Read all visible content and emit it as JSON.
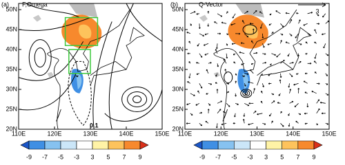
{
  "panels": [
    {
      "label": "(a)",
      "title": "F,Omega",
      "annotation": 0.1,
      "xticks": [
        {
          "value": 110,
          "label": "110E"
        },
        {
          "value": 120,
          "label": "120E"
        },
        {
          "value": 130,
          "label": "130E"
        },
        {
          "value": 140,
          "label": "140E"
        },
        {
          "value": 150,
          "label": "150E"
        }
      ],
      "yticks": [
        {
          "value": 20,
          "label": "20N"
        },
        {
          "value": 25,
          "label": "25N"
        },
        {
          "value": 30,
          "label": "30N"
        },
        {
          "value": 35,
          "label": "35N"
        },
        {
          "value": 40,
          "label": "40N"
        },
        {
          "value": 45,
          "label": "45N"
        },
        {
          "value": 50,
          "label": "50N"
        }
      ]
    },
    {
      "label": "(b)",
      "title": "Q-Vector",
      "reference_vector": 3,
      "xticks": [
        {
          "value": 110,
          "label": "110E"
        },
        {
          "value": 120,
          "label": "120E"
        },
        {
          "value": 130,
          "label": "130E"
        },
        {
          "value": 140,
          "label": "140E"
        },
        {
          "value": 150,
          "label": "150E"
        }
      ],
      "yticks": [
        {
          "value": 20,
          "label": "20N"
        },
        {
          "value": 25,
          "label": "25N"
        },
        {
          "value": 30,
          "label": "30N"
        },
        {
          "value": 35,
          "label": "35N"
        },
        {
          "value": 40,
          "label": "40N"
        },
        {
          "value": 45,
          "label": "45N"
        },
        {
          "value": 50,
          "label": "50N"
        }
      ]
    }
  ],
  "colorbars": [
    {
      "colors": [
        "#1a56c8",
        "#3f8fe4",
        "#86c2f0",
        "#cbe6f8",
        "#ffffff",
        "#fff3a6",
        "#fdc35c",
        "#f7892d",
        "#d9301a"
      ],
      "ticks": [
        -9,
        -7,
        -5,
        -3,
        3,
        5,
        7,
        9
      ]
    },
    {
      "colors": [
        "#1a56c8",
        "#3f8fe4",
        "#86c2f0",
        "#cbe6f8",
        "#ffffff",
        "#fff3a6",
        "#fdc35c",
        "#f7892d",
        "#d9301a"
      ],
      "ticks": [
        -9,
        -7,
        -5,
        -3,
        3,
        5,
        7,
        9
      ]
    }
  ]
}
